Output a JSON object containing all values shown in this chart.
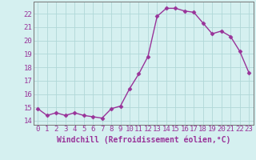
{
  "x": [
    0,
    1,
    2,
    3,
    4,
    5,
    6,
    7,
    8,
    9,
    10,
    11,
    12,
    13,
    14,
    15,
    16,
    17,
    18,
    19,
    20,
    21,
    22,
    23
  ],
  "y": [
    14.9,
    14.4,
    14.6,
    14.4,
    14.6,
    14.4,
    14.3,
    14.2,
    14.9,
    15.1,
    16.4,
    17.5,
    18.8,
    21.8,
    22.4,
    22.4,
    22.2,
    22.1,
    21.3,
    20.5,
    20.7,
    20.3,
    19.2,
    17.6
  ],
  "line_color": "#993399",
  "marker": "D",
  "markersize": 2.5,
  "linewidth": 1,
  "bg_color": "#d5f0f0",
  "grid_color": "#b0d8d8",
  "tick_color": "#993399",
  "label_color": "#993399",
  "xlabel": "Windchill (Refroidissement éolien,°C)",
  "ylim": [
    13.7,
    22.9
  ],
  "xlim": [
    -0.5,
    23.5
  ],
  "yticks": [
    14,
    15,
    16,
    17,
    18,
    19,
    20,
    21,
    22
  ],
  "xticks": [
    0,
    1,
    2,
    3,
    4,
    5,
    6,
    7,
    8,
    9,
    10,
    11,
    12,
    13,
    14,
    15,
    16,
    17,
    18,
    19,
    20,
    21,
    22,
    23
  ],
  "font_size": 6.5,
  "xlabel_fontsize": 7
}
